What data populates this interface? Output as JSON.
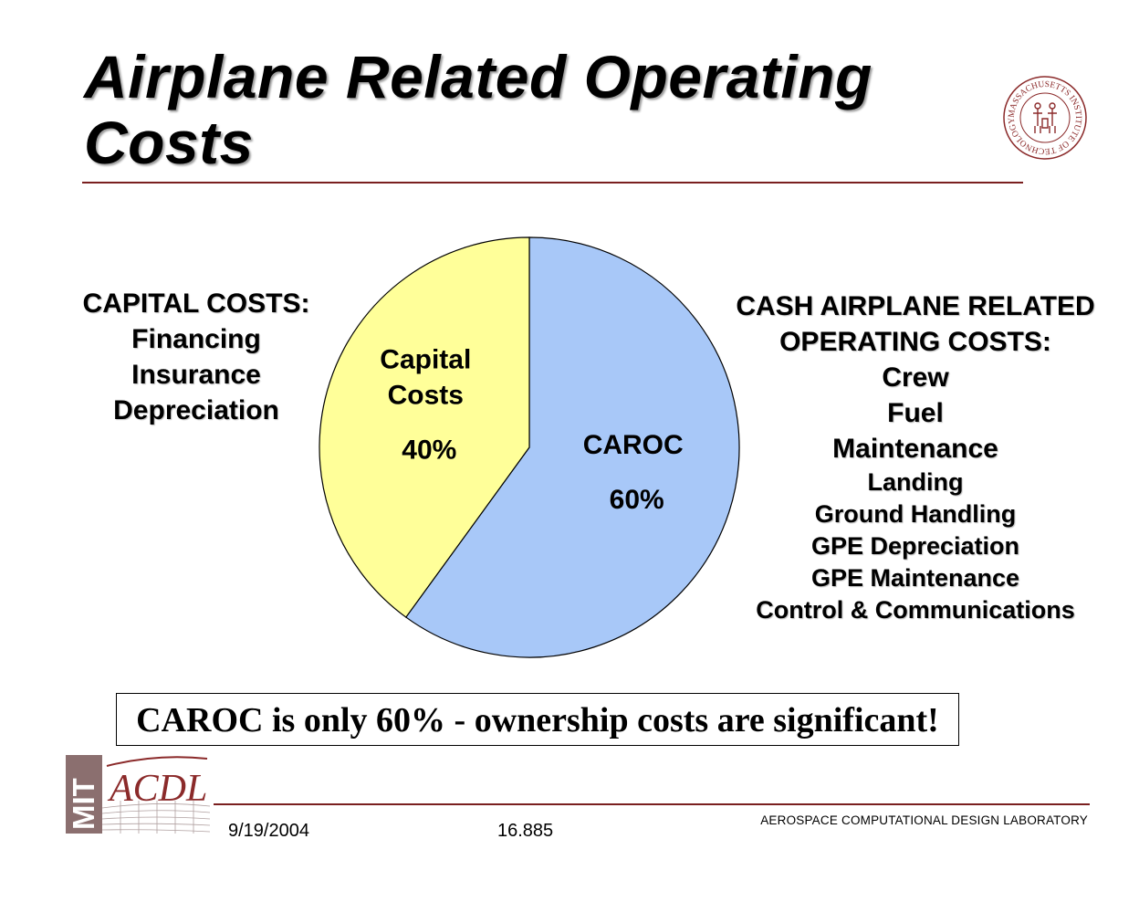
{
  "slide": {
    "title": "Airplane Related Operating Costs",
    "callout": "CAROC is only 60% - ownership costs are significant!",
    "seal_text": "MASSACHUSETTS INSTITUTE OF TECHNOLOGY"
  },
  "left_list": {
    "heading": "CAPITAL COSTS:",
    "items": [
      "Financing",
      "Insurance",
      "Depreciation"
    ]
  },
  "right_list": {
    "heading_line1": "CASH AIRPLANE RELATED",
    "heading_line2": "OPERATING COSTS:",
    "items_major": [
      "Crew",
      "Fuel",
      "Maintenance"
    ],
    "items_minor": [
      "Landing",
      "Ground Handling",
      "GPE Depreciation",
      "GPE Maintenance",
      "Control & Communications"
    ]
  },
  "chart_data": {
    "type": "pie",
    "title": "",
    "slices": [
      {
        "label_lines": [
          "CAROC"
        ],
        "value": 60,
        "value_label": "60%",
        "color": "#a8c8f8"
      },
      {
        "label_lines": [
          "Capital",
          "Costs"
        ],
        "value": 40,
        "value_label": "40%",
        "color": "#ffff99"
      }
    ],
    "start": "12 o'clock, clockwise",
    "legend": "none"
  },
  "footer": {
    "logo_letters_left": "MIT",
    "logo_letters_right": "ACDL",
    "date": "9/19/2004",
    "course": "16.885",
    "lab": "AEROSPACE COMPUTATIONAL DESIGN LABORATORY"
  },
  "colors": {
    "rule": "#7a1f1f",
    "seal": "#8b2a2a"
  }
}
